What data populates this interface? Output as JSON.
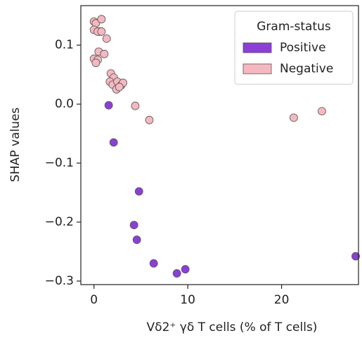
{
  "chart_data": {
    "type": "scatter",
    "x_label": "Vδ2⁺ γδ T cells (% of T cells)",
    "y_label": "SHAP values",
    "xlim": [
      -1.4,
      28.2
    ],
    "ylim": [
      -0.306,
      0.167
    ],
    "xticks": [
      0,
      10,
      20
    ],
    "yticks": [
      {
        "value": -0.3,
        "label": "−0.3"
      },
      {
        "value": -0.2,
        "label": "−0.2"
      },
      {
        "value": -0.1,
        "label": "−0.1"
      },
      {
        "value": 0,
        "label": "0.0"
      },
      0.1
    ],
    "legend_title": "Gram-status",
    "legend_position": "upper right",
    "series": [
      {
        "name": "Positive",
        "color": "#8b3fd6",
        "x": [
          1.57,
          2.1,
          4.8,
          4.27,
          4.57,
          6.37,
          8.84,
          9.74,
          27.9,
          0.6
        ],
        "values": [
          -0.002,
          -0.065,
          -0.148,
          -0.205,
          -0.23,
          -0.27,
          -0.287,
          -0.28,
          -0.258,
          0.123
        ]
      },
      {
        "name": "Negative",
        "color": "#f5b8c1",
        "x": [
          0.0,
          0.2,
          0.8,
          0.0,
          0.4,
          0.8,
          1.35,
          0.5,
          1.1,
          0.0,
          0.4,
          0.2,
          1.8,
          2.1,
          1.7,
          2.0,
          2.5,
          2.9,
          2.4,
          3.1,
          2.7,
          4.4,
          5.9,
          21.3,
          24.3
        ],
        "values": [
          0.14,
          0.137,
          0.144,
          0.126,
          0.123,
          0.123,
          0.111,
          0.089,
          0.085,
          0.077,
          0.075,
          0.07,
          0.052,
          0.045,
          0.038,
          0.033,
          0.038,
          0.032,
          0.025,
          0.036,
          0.029,
          -0.003,
          -0.027,
          -0.023,
          -0.012
        ]
      }
    ]
  }
}
